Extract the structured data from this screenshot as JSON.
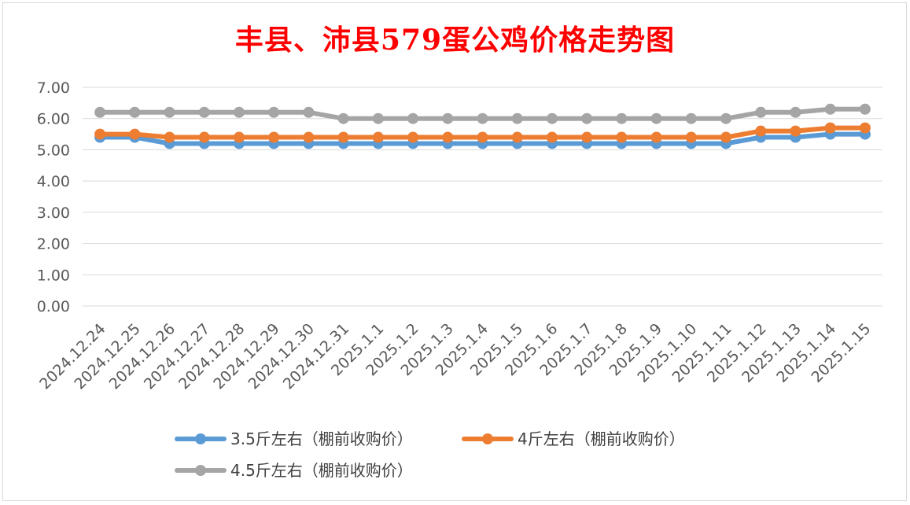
{
  "chart_data": {
    "type": "line",
    "title": "丰县、沛县579蛋公鸡价格走势图",
    "title_color": "#ff0000",
    "categories": [
      "2024.12.24",
      "2024.12.25",
      "2024.12.26",
      "2024.12.27",
      "2024.12.28",
      "2024.12.29",
      "2024.12.30",
      "2024.12.31",
      "2025.1.1",
      "2025.1.2",
      "2025.1.3",
      "2025.1.4",
      "2025.1.5",
      "2025.1.6",
      "2025.1.7",
      "2025.1.8",
      "2025.1.9",
      "2025.1.10",
      "2025.1.11",
      "2025.1.12",
      "2025.1.13",
      "2025.1.14",
      "2025.1.15"
    ],
    "ylim": [
      0,
      7
    ],
    "yticks": [
      "0.00",
      "1.00",
      "2.00",
      "3.00",
      "4.00",
      "5.00",
      "6.00",
      "7.00"
    ],
    "grid": true,
    "legend_position": "bottom",
    "series": [
      {
        "name": "3.5斤左右（棚前收购价）",
        "color": "#5b9bd5",
        "values": [
          5.4,
          5.4,
          5.2,
          5.2,
          5.2,
          5.2,
          5.2,
          5.2,
          5.2,
          5.2,
          5.2,
          5.2,
          5.2,
          5.2,
          5.2,
          5.2,
          5.2,
          5.2,
          5.2,
          5.4,
          5.4,
          5.5,
          5.5
        ]
      },
      {
        "name": "4斤左右（棚前收购价）",
        "color": "#ed7d31",
        "values": [
          5.5,
          5.5,
          5.4,
          5.4,
          5.4,
          5.4,
          5.4,
          5.4,
          5.4,
          5.4,
          5.4,
          5.4,
          5.4,
          5.4,
          5.4,
          5.4,
          5.4,
          5.4,
          5.4,
          5.6,
          5.6,
          5.7,
          5.7
        ]
      },
      {
        "name": "4.5斤左右（棚前收购价）",
        "color": "#a5a5a5",
        "values": [
          6.2,
          6.2,
          6.2,
          6.2,
          6.2,
          6.2,
          6.2,
          6.0,
          6.0,
          6.0,
          6.0,
          6.0,
          6.0,
          6.0,
          6.0,
          6.0,
          6.0,
          6.0,
          6.0,
          6.2,
          6.2,
          6.3,
          6.3
        ]
      }
    ]
  }
}
